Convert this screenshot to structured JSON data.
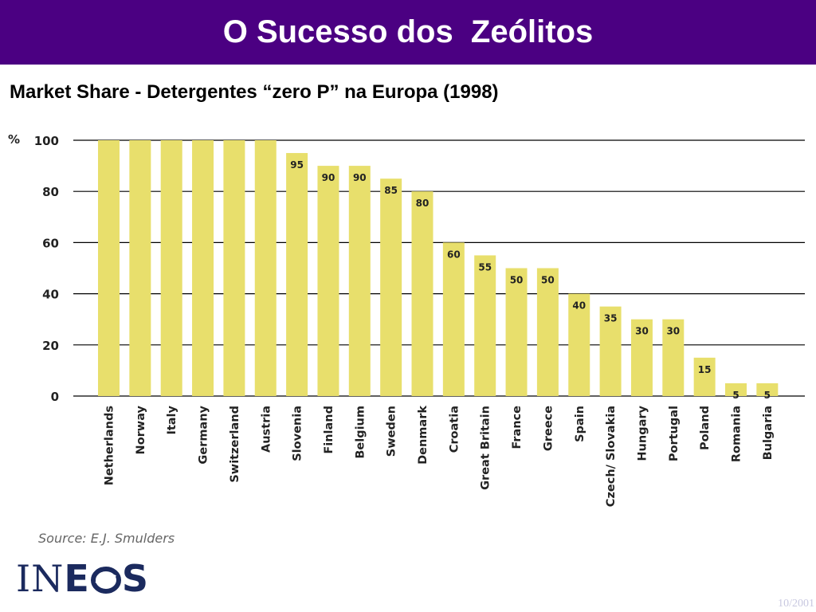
{
  "slide": {
    "title": "O Sucesso dos  Zeólitos",
    "subtitle": "Market Share - Detergentes “zero P” na Europa (1998)",
    "source": "Source: E.J. Smulders",
    "date": "10/2001"
  },
  "logo": {
    "letters": [
      "IN",
      "E",
      "S"
    ],
    "brand_color": "#1b2a5e"
  },
  "chart_data": {
    "type": "bar",
    "categories": [
      "Netherlands",
      "Norway",
      "Italy",
      "Germany",
      "Switzerland",
      "Austria",
      "Slovenia",
      "Finland",
      "Belgium",
      "Sweden",
      "Denmark",
      "Croatia",
      "Great Britain",
      "France",
      "Greece",
      "Spain",
      "Czech/ Slovakia",
      "Hungary",
      "Portugal",
      "Poland",
      "Romania",
      "Bulgaria"
    ],
    "values": [
      100,
      100,
      100,
      100,
      100,
      100,
      95,
      90,
      90,
      85,
      80,
      60,
      55,
      50,
      50,
      40,
      35,
      30,
      30,
      15,
      5,
      5
    ],
    "data_labels": [
      "",
      "",
      "",
      "",
      "",
      "",
      "95",
      "90",
      "90",
      "85",
      "80",
      "60",
      "55",
      "50",
      "50",
      "40",
      "35",
      "30",
      "30",
      "15",
      "5",
      "5"
    ],
    "ylabel": "%",
    "ylim": [
      0,
      100
    ],
    "yticks": [
      0,
      20,
      40,
      60,
      80,
      100
    ],
    "grid": true,
    "bar_color": "#e8df6c",
    "grid_color": "#000000"
  }
}
